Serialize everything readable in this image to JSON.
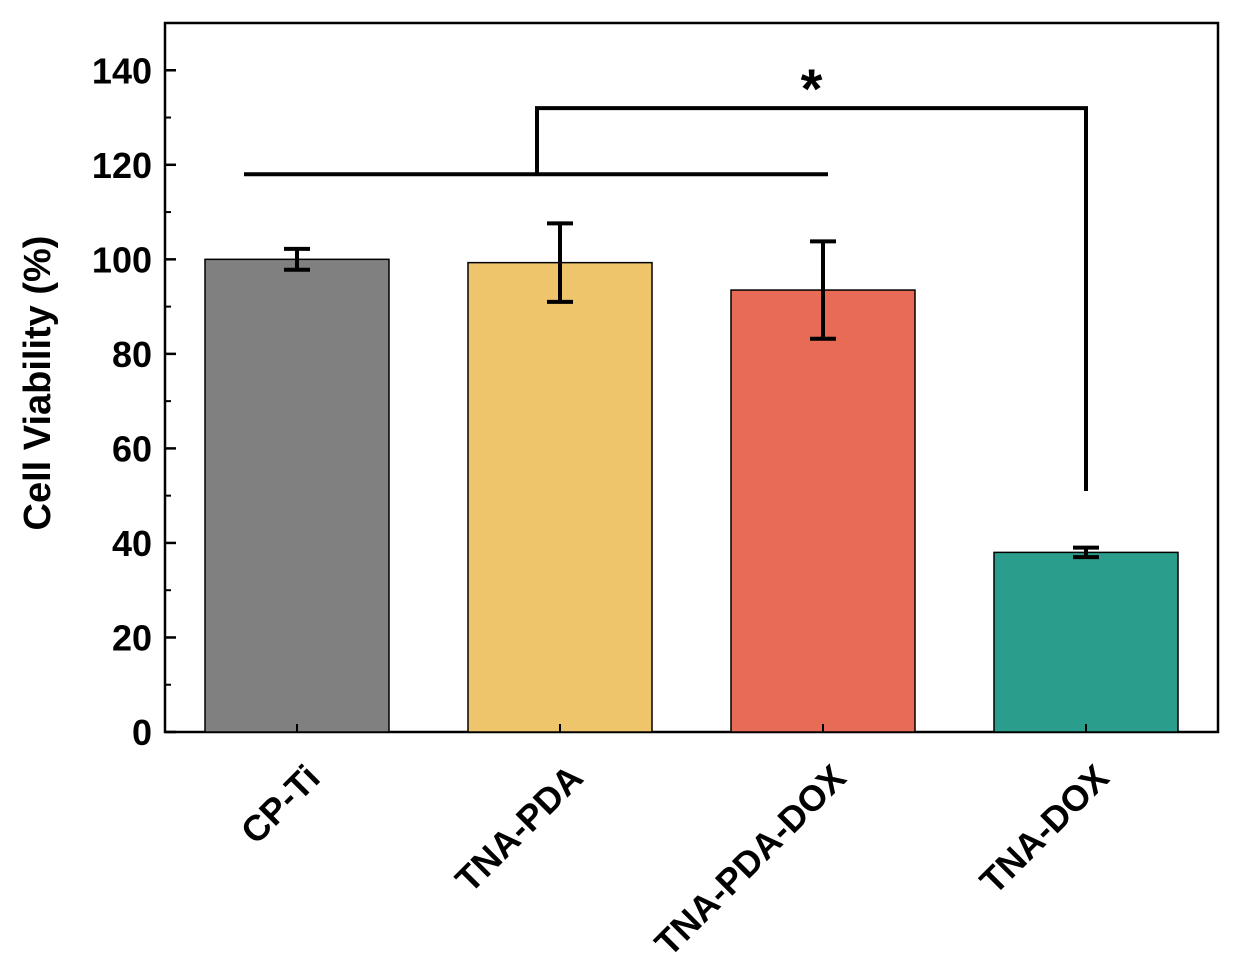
{
  "chart_data": {
    "type": "bar",
    "title": "",
    "xlabel": "",
    "ylabel": "Cell Viability (%)",
    "ylim": [
      0,
      150
    ],
    "yticks": [
      0,
      20,
      40,
      60,
      80,
      100,
      120,
      140
    ],
    "yminor_step": 10,
    "grid": false,
    "categories": [
      "CP-Ti",
      "TNA-PDA",
      "TNA-PDA-DOX",
      "TNA-DOX"
    ],
    "values": [
      100,
      99.3,
      93.5,
      38
    ],
    "errors": [
      2.2,
      8.3,
      10.3,
      1
    ],
    "colors": [
      "#808080",
      "#EFC56C",
      "#E86B56",
      "#2A9D8C"
    ],
    "significance": {
      "label": "*",
      "group_bar_span": [
        "CP-Ti",
        "TNA-PDA-DOX"
      ],
      "group_bar_y": 118,
      "bracket_y": 132,
      "target": "TNA-DOX",
      "target_drop_y": 51
    }
  }
}
